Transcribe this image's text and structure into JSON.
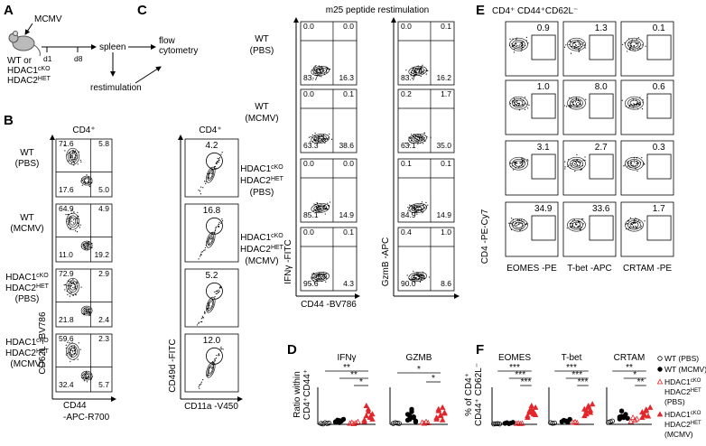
{
  "panel_a": {
    "letter": "A",
    "virus": "MCMV",
    "mouse_label": [
      "WT or",
      {
        "text": "HDAC1",
        "sup": "cKO"
      },
      {
        "text": "HDAC2",
        "sup": "HET"
      }
    ],
    "day_start": "d1",
    "day_end": "d8",
    "organ": "spleen",
    "readout": [
      "flow",
      "cytometry"
    ],
    "restim": "restimulation"
  },
  "panel_b": {
    "letter": "B",
    "headers": [
      "CD4⁺",
      "CD4⁺"
    ],
    "row_labels": [
      [
        "WT",
        "(PBS)"
      ],
      [
        "WT",
        "(MCMV)"
      ],
      [
        {
          "text": "HDAC1",
          "sup": "cKO"
        },
        {
          "text": "HDAC2",
          "sup": "HET"
        },
        "(PBS)"
      ],
      [
        {
          "text": "HDAC1",
          "sup": "cKO"
        },
        {
          "text": "HDAC2",
          "sup": "HET"
        },
        "(MCMV)"
      ]
    ],
    "y_label_left": "CD62L –BV786",
    "x_label_left": [
      "CD44",
      "-APC-R700"
    ],
    "y_label_right": "CD49d -FITC",
    "x_label_right": "CD11a -V450",
    "quadrants": [
      {
        "values": [
          71.6,
          5.8,
          17.6,
          5.0
        ],
        "value_labels": [
          "71.6",
          "5.8",
          "17.6",
          "5.0"
        ]
      },
      {
        "values": [
          64.9,
          4.9,
          11.0,
          19.2
        ],
        "value_labels": [
          "64.9",
          "4.9",
          "11.0",
          "19.2"
        ]
      },
      {
        "values": [
          72.9,
          2.9,
          21.8,
          2.4
        ],
        "value_labels": [
          "72.9",
          "2.9",
          "21.8",
          "2.4"
        ]
      },
      {
        "values": [
          59.6,
          2.3,
          32.4,
          5.7
        ],
        "value_labels": [
          "59.6",
          "2.3",
          "32.4",
          "5.7"
        ]
      }
    ],
    "gates": {
      "values": [
        4.2,
        16.8,
        5.2,
        12.0
      ],
      "value_labels": [
        "4.2",
        "16.8",
        "5.2",
        "12.0"
      ]
    }
  },
  "panel_c": {
    "letter": "C",
    "title": "m25 peptide restimulation",
    "row_labels": [
      [
        "WT",
        "(PBS)"
      ],
      [
        "WT",
        "(MCMV)"
      ],
      [
        {
          "text": "HDAC1",
          "sup": "cKO"
        },
        {
          "text": "HDAC2",
          "sup": "HET"
        },
        "(PBS)"
      ],
      [
        {
          "text": "HDAC1",
          "sup": "cKO"
        },
        {
          "text": "HDAC2",
          "sup": "HET"
        },
        "(MCMV)"
      ]
    ],
    "y_labels": [
      "IFNγ -FITC",
      "GzmB -APC"
    ],
    "x_label": "CD44 -BV786",
    "quadrants": [
      [
        {
          "values": [
            0.0,
            0.0,
            83.7,
            16.3
          ],
          "value_labels": [
            "0.0",
            "0.0",
            "83.7",
            "16.3"
          ]
        },
        {
          "values": [
            0.0,
            0.1,
            63.3,
            38.6
          ],
          "value_labels": [
            "0.0",
            "0.1",
            "63.3",
            "38.6"
          ]
        },
        {
          "values": [
            0.0,
            0.0,
            85.1,
            14.9
          ],
          "value_labels": [
            "0.0",
            "0.0",
            "85.1",
            "14.9"
          ]
        },
        {
          "values": [
            0.0,
            0.1,
            95.6,
            4.3
          ],
          "value_labels": [
            "0.0",
            "0.1",
            "95.6",
            "4.3"
          ]
        }
      ],
      [
        {
          "values": [
            0.0,
            0.1,
            83.7,
            16.2
          ],
          "value_labels": [
            "0.0",
            "0.1",
            "83.7",
            "16.2"
          ]
        },
        {
          "values": [
            0.2,
            1.7,
            63.1,
            35.0
          ],
          "value_labels": [
            "0.2",
            "1.7",
            "63.1",
            "35.0"
          ]
        },
        {
          "values": [
            0.1,
            0.1,
            84.9,
            14.9
          ],
          "value_labels": [
            "0.1",
            "0.1",
            "84.9",
            "14.9"
          ]
        },
        {
          "values": [
            0.4,
            1.0,
            90.0,
            8.6
          ],
          "value_labels": [
            "0.4",
            "1.0",
            "90.0",
            "8.6"
          ]
        }
      ]
    ]
  },
  "panel_e": {
    "letter": "E",
    "title": "CD4⁺ CD44⁺CD62L⁻",
    "y_label": "CD4 -PE-Cy7",
    "x_labels": [
      "EOMES -PE",
      "T-bet -APC",
      "CRTAM -PE"
    ],
    "gates": [
      {
        "values": [
          0.9,
          1.0,
          3.1,
          34.9
        ],
        "value_labels": [
          "0.9",
          "1.0",
          "3.1",
          "34.9"
        ]
      },
      {
        "values": [
          1.3,
          8.0,
          2.7,
          33.6
        ],
        "value_labels": [
          "1.3",
          "8.0",
          "2.7",
          "33.6"
        ]
      },
      {
        "values": [
          0.1,
          0.6,
          0.3,
          1.7
        ],
        "value_labels": [
          "0.1",
          "0.6",
          "0.3",
          "1.7"
        ]
      }
    ]
  },
  "panel_d": {
    "letter": "D",
    "y_label": [
      "Ratio within",
      "CD4⁺CD44⁺"
    ],
    "charts": [
      {
        "type": "scatter",
        "title": "IFNγ",
        "ylim": [
          0,
          4
        ],
        "significance": [
          "**",
          "**",
          "*"
        ],
        "series": [
          {
            "values": [
              0.1,
              0.05,
              0.2,
              0.1,
              0.15
            ]
          },
          {
            "values": [
              0.3,
              0.5,
              0.2,
              0.4,
              0.6,
              0.3,
              0.25,
              0.45
            ]
          },
          {
            "values": [
              0.1,
              0.2,
              0.05,
              0.15,
              0.3
            ]
          },
          {
            "values": [
              0.5,
              1.0,
              1.8,
              0.8,
              1.2,
              0.3,
              2.2,
              1.5,
              0.9,
              0.6
            ]
          }
        ]
      },
      {
        "type": "scatter",
        "title": "GZMB",
        "ylim": [
          0,
          4
        ],
        "significance": [
          "*",
          "*"
        ],
        "series": [
          {
            "values": [
              0.1,
              0.2,
              0.15,
              0.1
            ]
          },
          {
            "values": [
              0.5,
              1.0,
              1.5,
              0.8,
              0.3,
              1.2,
              0.6,
              1.8,
              0.9,
              0.4
            ]
          },
          {
            "values": [
              0.2,
              0.1,
              0.3,
              0.15
            ]
          },
          {
            "values": [
              0.6,
              1.6,
              1.0,
              2.0,
              1.3,
              0.8,
              1.8,
              1.1,
              0.5,
              1.4
            ]
          }
        ]
      }
    ]
  },
  "panel_f": {
    "letter": "F",
    "y_label": [
      "% of CD4⁺",
      "CD44⁺ CD62L⁻"
    ],
    "charts": [
      {
        "type": "scatter",
        "title": "EOMES",
        "ylim": [
          0,
          100
        ],
        "significance": [
          "***",
          "***",
          "***"
        ],
        "series": [
          {
            "values": [
              1,
              1.5,
              2,
              1
            ]
          },
          {
            "values": [
              3,
              5,
              2,
              4,
              6,
              3
            ]
          },
          {
            "values": [
              2,
              3,
              1.5,
              2.5
            ]
          },
          {
            "values": [
              20,
              35,
              45,
              30,
              50,
              25,
              40,
              55,
              38,
              28
            ]
          }
        ]
      },
      {
        "type": "scatter",
        "title": "T-bet",
        "ylim": [
          0,
          100
        ],
        "significance": [
          "***",
          "***",
          "***"
        ],
        "series": [
          {
            "values": [
              5,
              3,
              4
            ]
          },
          {
            "values": [
              8,
              12,
              10,
              6,
              15
            ]
          },
          {
            "values": [
              5,
              7,
              4
            ]
          },
          {
            "values": [
              25,
              40,
              55,
              35,
              60,
              45,
              30,
              50,
              42
            ]
          }
        ]
      },
      {
        "type": "scatter",
        "title": "CRTAM",
        "ylim": [
          0,
          5
        ],
        "significance": [
          "**",
          "*",
          "**"
        ],
        "series": [
          {
            "values": [
              0.3,
              0.4,
              0.5
            ]
          },
          {
            "values": [
              0.8,
              1.2,
              1.0,
              1.5,
              0.9,
              1.1,
              2.0
            ]
          },
          {
            "values": [
              0.4,
              1.0,
              0.6,
              0.8
            ]
          },
          {
            "values": [
              1.0,
              1.5,
              2.0,
              1.2,
              2.5,
              1.8,
              1.3,
              2.2
            ]
          }
        ]
      }
    ]
  },
  "legend": [
    {
      "label": [
        "WT (PBS)"
      ],
      "marker": "circle",
      "filled": false,
      "color": "#000000"
    },
    {
      "label": [
        "WT (MCMV)"
      ],
      "marker": "circle",
      "filled": true,
      "color": "#000000"
    },
    {
      "label": [
        {
          "text": "HDAC1",
          "sup": "cKO"
        },
        {
          "text": "HDAC2",
          "sup": "HET"
        },
        "(PBS)"
      ],
      "marker": "triangle",
      "filled": false,
      "color": "#e3262b"
    },
    {
      "label": [
        {
          "text": "HDAC1",
          "sup": "cKO"
        },
        {
          "text": "HDAC2",
          "sup": "HET"
        },
        "(MCMV)"
      ],
      "marker": "triangle",
      "filled": true,
      "color": "#e3262b"
    }
  ]
}
